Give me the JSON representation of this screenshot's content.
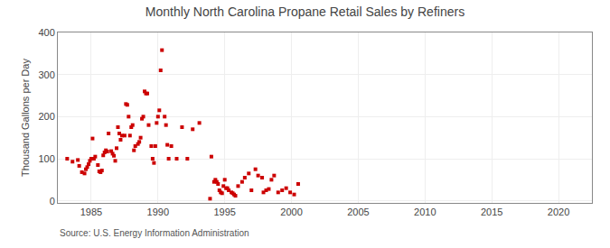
{
  "chart_data": {
    "type": "scatter",
    "title": "Monthly North Carolina Propane Retail Sales by Refiners",
    "ylabel": "Thousand Gallons per Day",
    "annotations": [
      "Source: U.S. Energy Information Administration"
    ],
    "color": "#cc0000",
    "marker": "square",
    "grid": true,
    "xlim": [
      1982.5,
      2022.5
    ],
    "ylim": [
      -5,
      400
    ],
    "xticks": [
      1985,
      1990,
      1995,
      2000,
      2005,
      2010,
      2015,
      2020
    ],
    "yticks": [
      0,
      100,
      200,
      300,
      400
    ],
    "x": [
      1983.2,
      1983.6,
      1984.0,
      1984.1,
      1984.3,
      1984.5,
      1984.6,
      1984.7,
      1984.8,
      1984.9,
      1985.0,
      1985.1,
      1985.2,
      1985.3,
      1985.5,
      1985.6,
      1985.7,
      1985.8,
      1985.9,
      1986.0,
      1986.1,
      1986.2,
      1986.3,
      1986.5,
      1986.6,
      1986.7,
      1986.8,
      1986.9,
      1987.0,
      1987.1,
      1987.2,
      1987.3,
      1987.5,
      1987.6,
      1987.7,
      1987.8,
      1987.9,
      1988.0,
      1988.1,
      1988.2,
      1988.3,
      1988.5,
      1988.6,
      1988.7,
      1988.8,
      1988.9,
      1989.0,
      1989.1,
      1989.2,
      1989.3,
      1989.5,
      1989.6,
      1989.7,
      1989.8,
      1989.9,
      1990.0,
      1990.1,
      1990.2,
      1990.3,
      1990.5,
      1990.6,
      1990.7,
      1990.8,
      1991.0,
      1991.4,
      1991.8,
      1992.2,
      1992.6,
      1993.1,
      1993.9,
      1994.0,
      1994.2,
      1994.3,
      1994.4,
      1994.5,
      1994.6,
      1994.7,
      1994.8,
      1994.9,
      1995.0,
      1995.1,
      1995.2,
      1995.3,
      1995.5,
      1995.6,
      1995.7,
      1995.8,
      1996.0,
      1996.3,
      1996.5,
      1996.8,
      1997.0,
      1997.3,
      1997.5,
      1997.8,
      1997.9,
      1998.1,
      1998.3,
      1998.5,
      1998.7,
      1999.0,
      1999.3,
      1999.6,
      1999.9,
      2000.2,
      2000.5
    ],
    "values": [
      100,
      93,
      97,
      83,
      68,
      65,
      75,
      80,
      87,
      95,
      100,
      148,
      100,
      105,
      85,
      70,
      68,
      72,
      108,
      115,
      120,
      117,
      160,
      118,
      112,
      107,
      95,
      125,
      175,
      160,
      145,
      155,
      155,
      230,
      228,
      200,
      155,
      175,
      180,
      120,
      130,
      135,
      140,
      150,
      195,
      200,
      260,
      255,
      255,
      180,
      130,
      100,
      90,
      130,
      185,
      200,
      215,
      310,
      358,
      200,
      180,
      133,
      100,
      130,
      100,
      175,
      100,
      170,
      185,
      5,
      105,
      45,
      50,
      45,
      40,
      25,
      20,
      18,
      35,
      50,
      30,
      30,
      25,
      20,
      18,
      15,
      12,
      35,
      45,
      55,
      65,
      25,
      75,
      60,
      55,
      20,
      25,
      28,
      50,
      60,
      20,
      25,
      30,
      20,
      15,
      40
    ]
  }
}
